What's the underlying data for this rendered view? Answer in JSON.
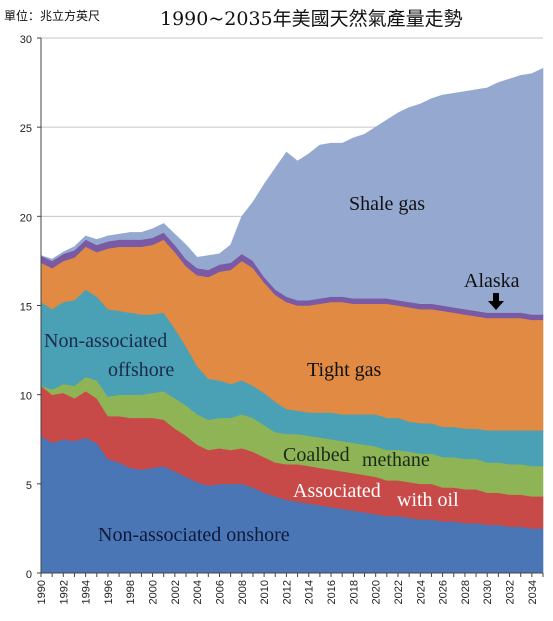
{
  "header": {
    "unit_label": "單位：兆立方英尺",
    "title": "1990~2035年美國天然氣產量走勢"
  },
  "chart_data": {
    "type": "area",
    "stacked": true,
    "title": "1990~2035年美國天然氣產量走勢",
    "unit": "單位：兆立方英尺",
    "xlabel": "",
    "ylabel": "",
    "xlim": [
      1990,
      2035
    ],
    "ylim": [
      0,
      30
    ],
    "y_ticks": [
      0,
      5,
      10,
      15,
      20,
      25,
      30
    ],
    "x_ticks": [
      "1990",
      "1992",
      "1994",
      "1996",
      "1998",
      "2000",
      "2002",
      "2004",
      "2006",
      "2008",
      "2010",
      "2012",
      "2014",
      "2016",
      "2018",
      "2020",
      "2022",
      "2024",
      "2026",
      "2028",
      "2030",
      "2032",
      "2034"
    ],
    "grid": "horizontal",
    "x": [
      1990,
      1991,
      1992,
      1993,
      1994,
      1995,
      1996,
      1997,
      1998,
      1999,
      2000,
      2001,
      2002,
      2003,
      2004,
      2005,
      2006,
      2007,
      2008,
      2009,
      2010,
      2011,
      2012,
      2013,
      2014,
      2015,
      2016,
      2017,
      2018,
      2019,
      2020,
      2021,
      2022,
      2023,
      2024,
      2025,
      2026,
      2027,
      2028,
      2029,
      2030,
      2031,
      2032,
      2033,
      2034,
      2035
    ],
    "series": [
      {
        "name": "Non-associated onshore",
        "color": "#4a76b6",
        "values": [
          7.7,
          7.3,
          7.5,
          7.4,
          7.6,
          7.3,
          6.4,
          6.2,
          5.9,
          5.8,
          5.9,
          6.0,
          5.7,
          5.4,
          5.1,
          4.9,
          5.0,
          5.0,
          5.0,
          4.8,
          4.5,
          4.3,
          4.1,
          4.0,
          3.9,
          3.8,
          3.7,
          3.6,
          3.5,
          3.4,
          3.3,
          3.2,
          3.2,
          3.1,
          3.0,
          3.0,
          2.9,
          2.9,
          2.8,
          2.8,
          2.7,
          2.7,
          2.6,
          2.6,
          2.5,
          2.5
        ]
      },
      {
        "name": "Associated with oil",
        "color": "#c84a48",
        "values": [
          2.8,
          2.7,
          2.6,
          2.4,
          2.6,
          2.5,
          2.4,
          2.6,
          2.8,
          2.9,
          2.8,
          2.6,
          2.4,
          2.3,
          2.1,
          2.0,
          2.0,
          1.9,
          2.0,
          2.0,
          2.0,
          1.9,
          2.0,
          2.1,
          2.1,
          2.1,
          2.1,
          2.1,
          2.1,
          2.1,
          2.1,
          2.0,
          2.0,
          2.0,
          2.0,
          2.0,
          1.9,
          1.9,
          1.9,
          1.9,
          1.8,
          1.8,
          1.8,
          1.8,
          1.8,
          1.8
        ]
      },
      {
        "name": "Coalbed methane",
        "color": "#8fb456",
        "values": [
          0.0,
          0.3,
          0.5,
          0.7,
          0.8,
          1.0,
          1.1,
          1.2,
          1.3,
          1.3,
          1.4,
          1.6,
          1.7,
          1.7,
          1.7,
          1.7,
          1.7,
          1.8,
          1.9,
          1.9,
          1.8,
          1.7,
          1.7,
          1.7,
          1.7,
          1.7,
          1.7,
          1.7,
          1.7,
          1.7,
          1.7,
          1.7,
          1.7,
          1.7,
          1.7,
          1.7,
          1.7,
          1.7,
          1.7,
          1.7,
          1.7,
          1.7,
          1.7,
          1.7,
          1.7,
          1.7
        ]
      },
      {
        "name": "Non-associated offshore",
        "color": "#4aa0b4",
        "values": [
          4.7,
          4.5,
          4.6,
          4.8,
          4.9,
          4.7,
          4.9,
          4.7,
          4.6,
          4.5,
          4.4,
          4.4,
          3.9,
          3.3,
          2.7,
          2.3,
          2.1,
          1.9,
          1.9,
          1.8,
          1.8,
          1.7,
          1.4,
          1.3,
          1.3,
          1.4,
          1.5,
          1.5,
          1.6,
          1.7,
          1.8,
          1.8,
          1.8,
          1.7,
          1.7,
          1.7,
          1.7,
          1.7,
          1.7,
          1.7,
          1.8,
          1.8,
          1.9,
          1.9,
          2.0,
          2.0
        ]
      },
      {
        "name": "Tight gas",
        "color": "#e08a43",
        "values": [
          2.2,
          2.3,
          2.3,
          2.4,
          2.4,
          2.5,
          3.4,
          3.6,
          3.7,
          3.8,
          3.9,
          4.1,
          4.3,
          4.5,
          5.1,
          5.7,
          6.1,
          6.4,
          6.7,
          6.6,
          6.2,
          6.0,
          6.0,
          5.9,
          6.0,
          6.1,
          6.2,
          6.3,
          6.2,
          6.2,
          6.2,
          6.4,
          6.3,
          6.4,
          6.4,
          6.4,
          6.5,
          6.4,
          6.4,
          6.3,
          6.3,
          6.3,
          6.3,
          6.3,
          6.2,
          6.2
        ]
      },
      {
        "name": "Alaska",
        "color": "#7a5aa4",
        "values": [
          0.4,
          0.4,
          0.4,
          0.4,
          0.4,
          0.4,
          0.4,
          0.4,
          0.4,
          0.4,
          0.4,
          0.4,
          0.4,
          0.4,
          0.4,
          0.4,
          0.4,
          0.4,
          0.4,
          0.4,
          0.3,
          0.3,
          0.3,
          0.3,
          0.3,
          0.3,
          0.3,
          0.3,
          0.3,
          0.3,
          0.3,
          0.3,
          0.3,
          0.3,
          0.3,
          0.3,
          0.3,
          0.3,
          0.3,
          0.3,
          0.3,
          0.3,
          0.3,
          0.3,
          0.3,
          0.3
        ]
      },
      {
        "name": "Shale gas",
        "color": "#94a8d0",
        "values": [
          0.0,
          0.1,
          0.1,
          0.2,
          0.2,
          0.3,
          0.3,
          0.3,
          0.4,
          0.4,
          0.5,
          0.5,
          0.6,
          0.8,
          0.6,
          0.8,
          0.6,
          1.0,
          2.1,
          3.3,
          5.2,
          6.8,
          8.1,
          7.8,
          8.2,
          8.6,
          8.6,
          8.6,
          9.0,
          9.2,
          9.6,
          10.0,
          10.5,
          10.9,
          11.2,
          11.5,
          11.8,
          12.0,
          12.2,
          12.4,
          12.6,
          12.9,
          13.1,
          13.3,
          13.5,
          13.8
        ]
      }
    ],
    "annotations": [
      {
        "text": "Shale gas",
        "color": "#111111"
      },
      {
        "text": "Alaska",
        "color": "#111111"
      },
      {
        "text": "Non-associated",
        "color": "#1a2a4a"
      },
      {
        "text": "offshore",
        "color": "#1a2a4a"
      },
      {
        "text": "Tight gas",
        "color": "#111111"
      },
      {
        "text": "Coalbed",
        "color": "#1a2a1a"
      },
      {
        "text": "methane",
        "color": "#1a2a1a"
      },
      {
        "text": "Associated",
        "color": "#ffffff"
      },
      {
        "text": "with oil",
        "color": "#ffffff"
      },
      {
        "text": "Non-associated onshore",
        "color": "#0e1a3a"
      }
    ]
  }
}
